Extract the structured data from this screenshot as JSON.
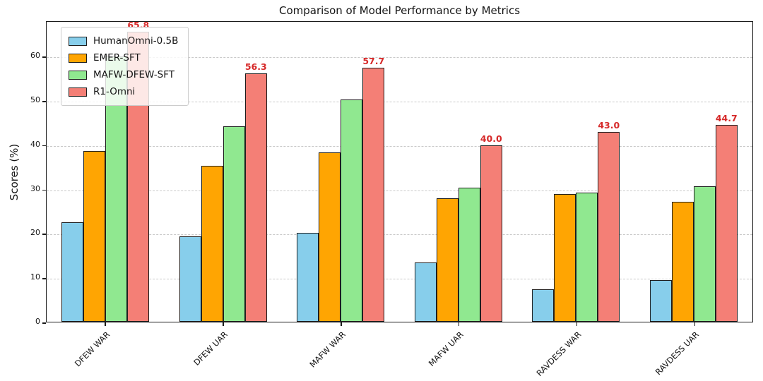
{
  "chart_data": {
    "type": "bar",
    "title": "Comparison of Model Performance by Metrics",
    "ylabel": "Scores (%)",
    "categories": [
      "DFEW WAR",
      "DFEW UAR",
      "MAFW WAR",
      "MAFW UAR",
      "RAVDESS WAR",
      "RAVDESS UAR"
    ],
    "series": [
      {
        "name": "HumanOmni-0.5B",
        "color": "#87CEEB",
        "values": [
          22.64,
          19.44,
          20.18,
          13.52,
          7.33,
          9.38
        ]
      },
      {
        "name": "EMER-SFT",
        "color": "#FFA502",
        "values": [
          38.66,
          35.31,
          38.39,
          28.02,
          29.0,
          27.19
        ]
      },
      {
        "name": "MAFW-DFEW-SFT",
        "color": "#90E890",
        "values": [
          60.23,
          44.39,
          50.44,
          30.39,
          29.33,
          30.75
        ]
      },
      {
        "name": "R1-Omni",
        "color": "#F47F76",
        "values": [
          65.83,
          56.27,
          57.68,
          40.04,
          43.0,
          44.69
        ],
        "bar_labels": [
          "65.8",
          "56.3",
          "57.7",
          "40.0",
          "43.0",
          "44.7"
        ]
      }
    ],
    "ylim": [
      0,
      68
    ],
    "yticks": [
      0,
      10,
      20,
      30,
      40,
      50,
      60
    ],
    "grid": "dashed-horizontal",
    "legend_position": "upper-left",
    "bar_label_color": "#d62929",
    "bar_edge_color": "#1f1f1f"
  }
}
